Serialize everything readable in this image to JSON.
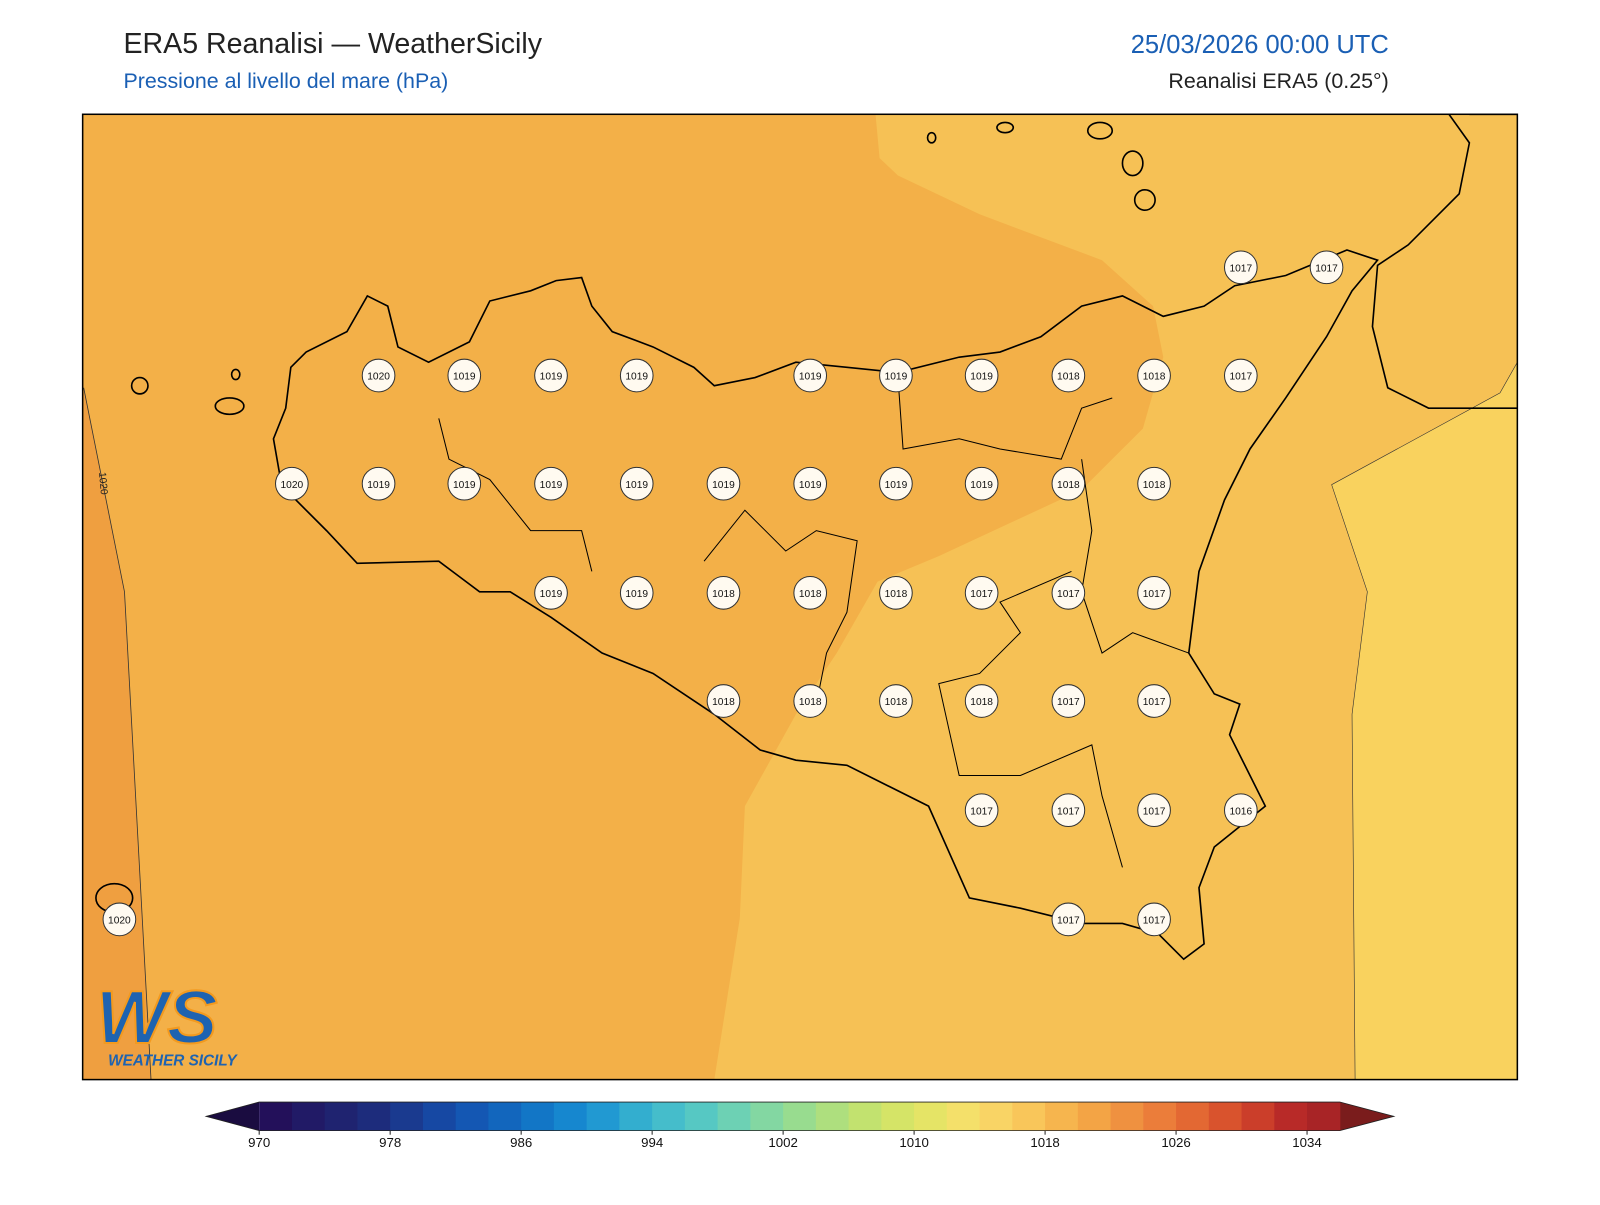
{
  "header": {
    "title": "ERA5 Reanalisi — WeatherSicily",
    "subtitle": "Pressione al livello del mare (hPa)",
    "datetime": "25/03/2026 00:00 UTC",
    "source": "Reanalisi ERA5 (0.25°)"
  },
  "map": {
    "contour_label": "1020",
    "stations": [
      1017,
      1017,
      1020,
      1019,
      1019,
      1019,
      1019,
      1019,
      1019,
      1018,
      1018,
      1017,
      1020,
      1019,
      1019,
      1019,
      1019,
      1019,
      1019,
      1019,
      1019,
      1018,
      1018,
      1019,
      1019,
      1018,
      1018,
      1018,
      1017,
      1017,
      1017,
      1018,
      1018,
      1018,
      1018,
      1017,
      1017,
      1017,
      1017,
      1017,
      1016,
      1020,
      1017,
      1017
    ]
  },
  "logo": {
    "mark": "WS",
    "text": "WEATHER SICILY"
  },
  "colorbar": {
    "range": [
      970,
      1036
    ],
    "ticks": [
      970,
      978,
      986,
      994,
      1002,
      1010,
      1018,
      1026,
      1034
    ],
    "under_color": "#1a0c40",
    "over_color": "#7a1c1c",
    "colors": [
      "#23105a",
      "#211a66",
      "#1f2370",
      "#1d2c7c",
      "#1a3a8f",
      "#1648a3",
      "#1457b3",
      "#1266bd",
      "#1276c6",
      "#1687cf",
      "#2199d2",
      "#33aecf",
      "#45bdcb",
      "#56c8c3",
      "#6dd1b4",
      "#83d7a2",
      "#98dc8f",
      "#aedf7e",
      "#c2e26f",
      "#d5e467",
      "#e5e466",
      "#f4e06a",
      "#f9d465",
      "#f9c65a",
      "#f6b54e",
      "#f3a445",
      "#ef9140",
      "#eb7d3a",
      "#e36833",
      "#d9532d",
      "#cb3e2a",
      "#b82a28",
      "#a82426"
    ]
  }
}
